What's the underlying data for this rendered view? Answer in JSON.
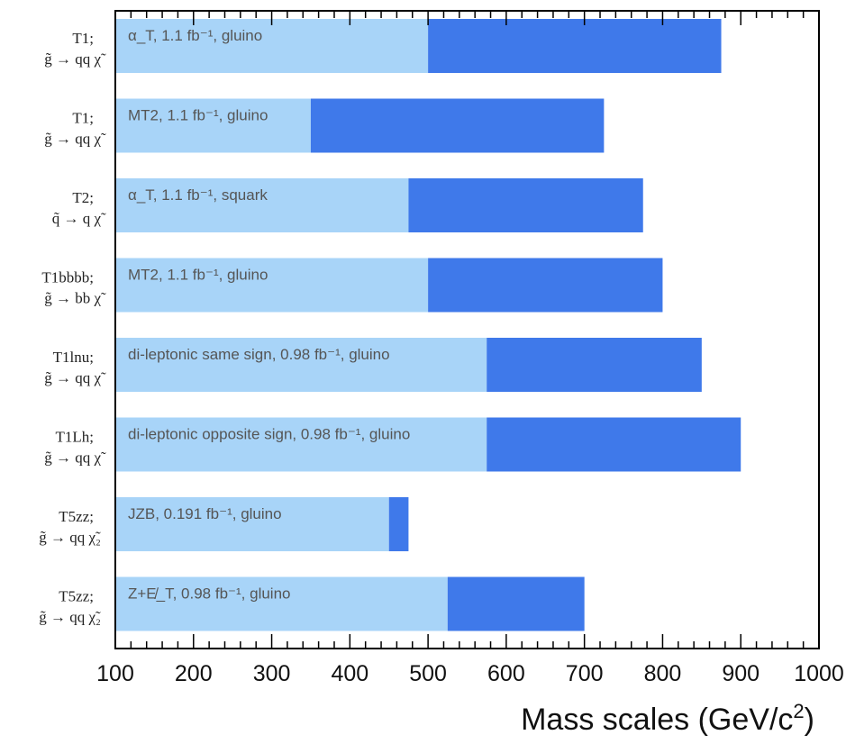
{
  "chart_data": {
    "type": "bar",
    "orientation": "horizontal",
    "stacked": true,
    "xlabel_main": "Mass scales (GeV/c",
    "xlabel_sup": "2",
    "xlabel_tail": ")",
    "xlim": [
      100,
      1000
    ],
    "xticks": [
      100,
      200,
      300,
      400,
      500,
      600,
      700,
      800,
      900,
      1000
    ],
    "xtick_labels": [
      "100",
      "200",
      "300",
      "400",
      "500",
      "600",
      "700",
      "800",
      "900",
      "1000"
    ],
    "colors": {
      "lower_segment": "#a8d4f8",
      "upper_segment": "#3f79ea",
      "frame": "#000000"
    },
    "rows": [
      {
        "label_top": "T1;",
        "label_bottom": "g̃ → qq χ̃",
        "bar_text": "α_T, 1.1 fb⁻¹, gluino",
        "light_end": 500,
        "dark_end": 875
      },
      {
        "label_top": "T1;",
        "label_bottom": "g̃ → qq χ̃",
        "bar_text": "MT2, 1.1 fb⁻¹, gluino",
        "light_end": 350,
        "dark_end": 725
      },
      {
        "label_top": "T2;",
        "label_bottom": "q̃ → q χ̃",
        "bar_text": "α_T, 1.1 fb⁻¹, squark",
        "light_end": 475,
        "dark_end": 775
      },
      {
        "label_top": "T1bbbb;",
        "label_bottom": "g̃ → bb χ̃",
        "bar_text": "MT2, 1.1 fb⁻¹, gluino",
        "light_end": 500,
        "dark_end": 800
      },
      {
        "label_top": "T1lnu;",
        "label_bottom": "g̃ → qq χ̃",
        "bar_text": "di-leptonic same sign, 0.98 fb⁻¹, gluino",
        "light_end": 575,
        "dark_end": 850
      },
      {
        "label_top": "T1Lh;",
        "label_bottom": "g̃ → qq χ̃",
        "bar_text": "di-leptonic opposite sign, 0.98 fb⁻¹, gluino",
        "light_end": 575,
        "dark_end": 900
      },
      {
        "label_top": "T5zz;",
        "label_bottom": "g̃ → qq χ̃₂",
        "bar_text": "JZB, 0.191 fb⁻¹, gluino",
        "light_end": 450,
        "dark_end": 475
      },
      {
        "label_top": "T5zz;",
        "label_bottom": "g̃ → qq χ̃₂",
        "bar_text": "Z+E̸_T, 0.98 fb⁻¹, gluino",
        "light_end": 525,
        "dark_end": 700
      }
    ]
  }
}
